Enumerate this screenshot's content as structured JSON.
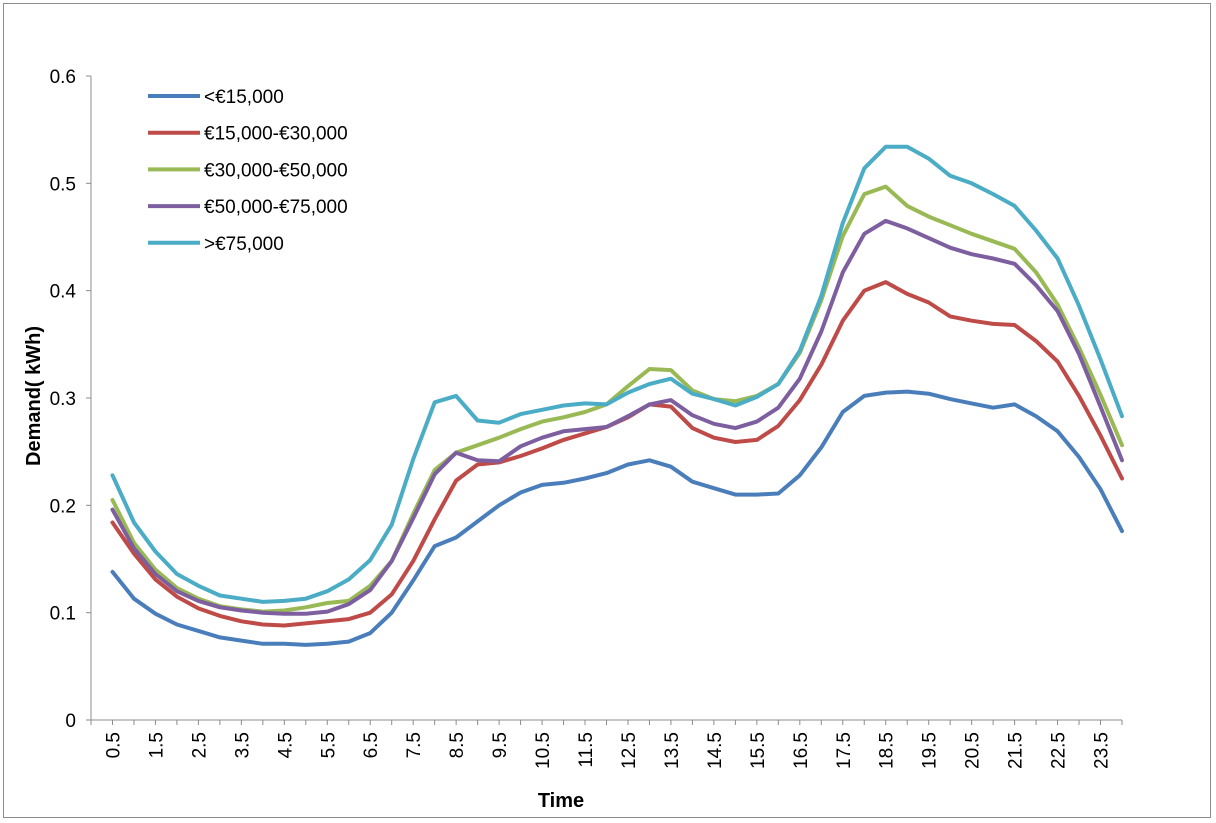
{
  "chart_data": {
    "type": "line",
    "xlabel": "Time",
    "ylabel": "Demand( kWh)",
    "ylim": [
      0,
      0.6
    ],
    "yticks": [
      "0",
      "0.1",
      "0.2",
      "0.3",
      "0.4",
      "0.5",
      "0.6"
    ],
    "x": [
      0.5,
      1,
      1.5,
      2,
      2.5,
      3,
      3.5,
      4,
      4.5,
      5,
      5.5,
      6,
      6.5,
      7,
      7.5,
      8,
      8.5,
      9,
      9.5,
      10,
      10.5,
      11,
      11.5,
      12,
      12.5,
      13,
      13.5,
      14,
      14.5,
      15,
      15.5,
      16,
      16.5,
      17,
      17.5,
      18,
      18.5,
      19,
      19.5,
      20,
      20.5,
      21,
      21.5,
      22,
      22.5,
      23,
      23.5,
      24
    ],
    "xtick_labels": [
      "0.5",
      "1.5",
      "2.5",
      "3.5",
      "4.5",
      "5.5",
      "6.5",
      "7.5",
      "8.5",
      "9.5",
      "10.5",
      "11.5",
      "12.5",
      "13.5",
      "14.5",
      "15.5",
      "16.5",
      "17.5",
      "18.5",
      "19.5",
      "20.5",
      "21.5",
      "22.5",
      "23.5"
    ],
    "legend_position": "top-left",
    "grid": false,
    "series": [
      {
        "name": "<€15,000",
        "color": "#4a7ebb",
        "values": [
          0.138,
          0.113,
          0.099,
          0.089,
          0.083,
          0.077,
          0.074,
          0.071,
          0.071,
          0.07,
          0.071,
          0.073,
          0.081,
          0.1,
          0.13,
          0.162,
          0.17,
          0.185,
          0.2,
          0.212,
          0.219,
          0.221,
          0.225,
          0.23,
          0.238,
          0.242,
          0.236,
          0.222,
          0.216,
          0.21,
          0.21,
          0.211,
          0.228,
          0.254,
          0.287,
          0.302,
          0.305,
          0.306,
          0.304,
          0.299,
          0.295,
          0.291,
          0.294,
          0.283,
          0.269,
          0.245,
          0.215,
          0.176
        ]
      },
      {
        "name": "€15,000-€30,000",
        "color": "#be4b48",
        "values": [
          0.184,
          0.155,
          0.131,
          0.115,
          0.104,
          0.097,
          0.092,
          0.089,
          0.088,
          0.09,
          0.092,
          0.094,
          0.1,
          0.117,
          0.148,
          0.187,
          0.223,
          0.238,
          0.24,
          0.246,
          0.253,
          0.261,
          0.267,
          0.273,
          0.282,
          0.294,
          0.292,
          0.272,
          0.263,
          0.259,
          0.261,
          0.274,
          0.298,
          0.331,
          0.372,
          0.4,
          0.408,
          0.397,
          0.389,
          0.376,
          0.372,
          0.369,
          0.368,
          0.353,
          0.334,
          0.302,
          0.265,
          0.225
        ]
      },
      {
        "name": "€30,000-€50,000",
        "color": "#98b954",
        "values": [
          0.205,
          0.165,
          0.14,
          0.123,
          0.113,
          0.106,
          0.103,
          0.101,
          0.102,
          0.105,
          0.109,
          0.111,
          0.125,
          0.148,
          0.192,
          0.233,
          0.249,
          0.256,
          0.263,
          0.271,
          0.278,
          0.282,
          0.287,
          0.294,
          0.311,
          0.327,
          0.326,
          0.307,
          0.299,
          0.297,
          0.302,
          0.313,
          0.342,
          0.391,
          0.451,
          0.49,
          0.497,
          0.479,
          0.469,
          0.461,
          0.453,
          0.446,
          0.439,
          0.417,
          0.387,
          0.347,
          0.303,
          0.256
        ]
      },
      {
        "name": "€50,000-€75,000",
        "color": "#7d5fa0",
        "values": [
          0.196,
          0.16,
          0.136,
          0.12,
          0.111,
          0.105,
          0.102,
          0.1,
          0.099,
          0.099,
          0.101,
          0.108,
          0.121,
          0.148,
          0.188,
          0.229,
          0.249,
          0.242,
          0.241,
          0.255,
          0.263,
          0.269,
          0.271,
          0.273,
          0.283,
          0.294,
          0.298,
          0.284,
          0.276,
          0.272,
          0.278,
          0.291,
          0.318,
          0.362,
          0.417,
          0.453,
          0.465,
          0.458,
          0.449,
          0.44,
          0.434,
          0.43,
          0.425,
          0.405,
          0.381,
          0.341,
          0.292,
          0.242
        ]
      },
      {
        "name": ">€75,000",
        "color": "#4aacc5",
        "values": [
          0.228,
          0.184,
          0.157,
          0.136,
          0.125,
          0.116,
          0.113,
          0.11,
          0.111,
          0.113,
          0.12,
          0.131,
          0.149,
          0.182,
          0.243,
          0.296,
          0.302,
          0.279,
          0.277,
          0.285,
          0.289,
          0.293,
          0.295,
          0.294,
          0.305,
          0.313,
          0.318,
          0.304,
          0.299,
          0.293,
          0.301,
          0.313,
          0.344,
          0.395,
          0.463,
          0.514,
          0.534,
          0.534,
          0.523,
          0.507,
          0.5,
          0.49,
          0.479,
          0.456,
          0.43,
          0.386,
          0.336,
          0.283
        ]
      }
    ]
  }
}
